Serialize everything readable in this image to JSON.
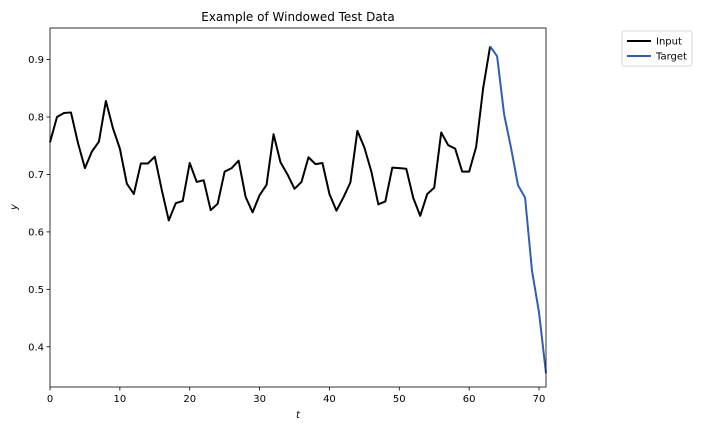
{
  "chart_data": {
    "type": "line",
    "title": "Example of Windowed Test Data",
    "xlabel": "t",
    "ylabel": "y",
    "xlim": [
      0,
      71
    ],
    "ylim": [
      0.33,
      0.955
    ],
    "xticks": [
      "0",
      "10",
      "20",
      "30",
      "40",
      "50",
      "60",
      "70"
    ],
    "yticks": [
      "0.4",
      "0.5",
      "0.6",
      "0.7",
      "0.8",
      "0.9"
    ],
    "grid": false,
    "legend_position": "outside-top-right",
    "series": [
      {
        "name": "Input",
        "color": "#000000",
        "x": [
          0,
          1,
          2,
          3,
          4,
          5,
          6,
          7,
          8,
          9,
          10,
          11,
          12,
          13,
          14,
          15,
          16,
          17,
          18,
          19,
          20,
          21,
          22,
          23,
          24,
          25,
          26,
          27,
          28,
          29,
          30,
          31,
          32,
          33,
          34,
          35,
          36,
          37,
          38,
          39,
          40,
          41,
          42,
          43,
          44,
          45,
          46,
          47,
          48,
          49,
          50,
          51,
          52,
          53,
          54,
          55,
          56,
          57,
          58,
          59,
          60,
          61,
          62,
          63
        ],
        "values": [
          0.756,
          0.8,
          0.807,
          0.808,
          0.755,
          0.711,
          0.74,
          0.757,
          0.828,
          0.781,
          0.745,
          0.684,
          0.666,
          0.719,
          0.719,
          0.731,
          0.673,
          0.62,
          0.65,
          0.654,
          0.72,
          0.687,
          0.69,
          0.638,
          0.649,
          0.705,
          0.711,
          0.724,
          0.661,
          0.634,
          0.664,
          0.682,
          0.77,
          0.721,
          0.7,
          0.675,
          0.687,
          0.73,
          0.718,
          0.72,
          0.666,
          0.637,
          0.66,
          0.686,
          0.776,
          0.747,
          0.705,
          0.648,
          0.653,
          0.712,
          0.711,
          0.71,
          0.659,
          0.628,
          0.666,
          0.677,
          0.773,
          0.751,
          0.745,
          0.705,
          0.705,
          0.748,
          0.85,
          0.923
        ]
      },
      {
        "name": "Target",
        "color": "#2f5fb3",
        "x": [
          63,
          64,
          65,
          66,
          67,
          68,
          69,
          70,
          71
        ],
        "values": [
          0.923,
          0.906,
          0.805,
          0.746,
          0.681,
          0.66,
          0.532,
          0.46,
          0.354
        ]
      }
    ]
  }
}
